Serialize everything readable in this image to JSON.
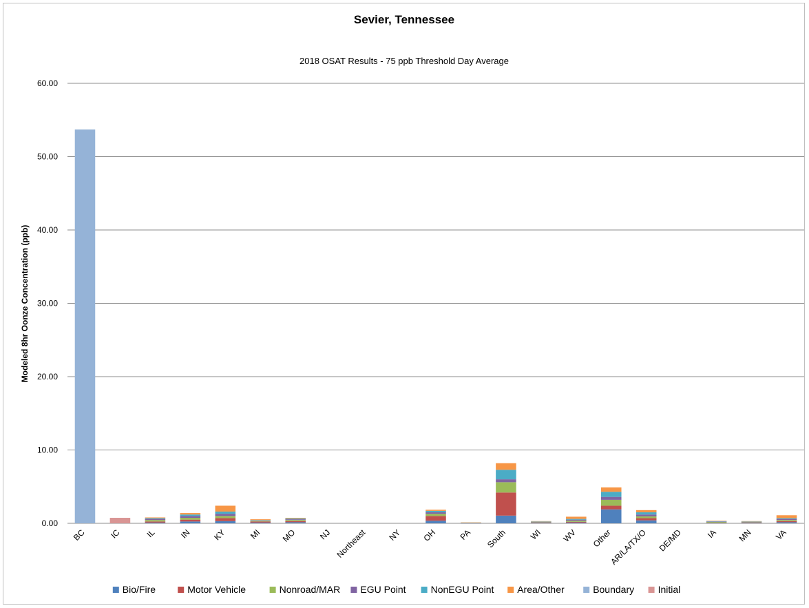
{
  "chart_data": {
    "type": "bar",
    "stacked": true,
    "title": "Sevier, Tennessee",
    "subtitle": "2018 OSAT Results - 75 ppb Threshold Day Average",
    "xlabel": "",
    "ylabel": "Modeled 8hr Oonze Concentration (ppb)",
    "ylim": [
      0,
      60
    ],
    "yticks": [
      "0.00",
      "10.00",
      "20.00",
      "30.00",
      "40.00",
      "50.00",
      "60.00"
    ],
    "grid": true,
    "legend_position": "bottom",
    "categories": [
      "BC",
      "IC",
      "IL",
      "IN",
      "KY",
      "MI",
      "MO",
      "NJ",
      "Northeast",
      "NY",
      "OH",
      "PA",
      "South",
      "WI",
      "WV",
      "Other",
      "AR/LA/TX/O",
      "DE/MD",
      "IA",
      "MN",
      "VA"
    ],
    "series": [
      {
        "name": "Bio/Fire",
        "color": "#4f81bd",
        "values": [
          0,
          0,
          0.1,
          0.25,
          0.3,
          0.1,
          0.15,
          0,
          0,
          0,
          0.35,
          0.02,
          1.05,
          0.05,
          0.1,
          1.9,
          0.4,
          0,
          0.05,
          0.05,
          0.15
        ]
      },
      {
        "name": "Motor Vehicle",
        "color": "#c0504d",
        "values": [
          0,
          0,
          0.15,
          0.25,
          0.4,
          0.15,
          0.15,
          0,
          0,
          0,
          0.65,
          0.02,
          3.15,
          0.05,
          0.1,
          0.5,
          0.3,
          0,
          0.05,
          0.05,
          0.15
        ]
      },
      {
        "name": "Nonroad/MAR",
        "color": "#9bbb59",
        "values": [
          0,
          0,
          0.2,
          0.25,
          0.3,
          0.1,
          0.15,
          0,
          0,
          0,
          0.3,
          0.02,
          1.4,
          0.05,
          0.15,
          0.8,
          0.25,
          0,
          0.1,
          0.05,
          0.15
        ]
      },
      {
        "name": "EGU Point",
        "color": "#8064a2",
        "values": [
          0,
          0,
          0.15,
          0.25,
          0.3,
          0.05,
          0.1,
          0,
          0,
          0,
          0.2,
          0.02,
          0.4,
          0.05,
          0.15,
          0.4,
          0.25,
          0,
          0.05,
          0.05,
          0.15
        ]
      },
      {
        "name": "NonEGU Point",
        "color": "#4bacc6",
        "values": [
          0,
          0,
          0.1,
          0.2,
          0.3,
          0.05,
          0.1,
          0,
          0,
          0,
          0.2,
          0.02,
          1.3,
          0.05,
          0.1,
          0.7,
          0.3,
          0,
          0.05,
          0.05,
          0.1
        ]
      },
      {
        "name": "Area/Other",
        "color": "#f79646",
        "values": [
          0,
          0,
          0.1,
          0.2,
          0.8,
          0.1,
          0.1,
          0,
          0,
          0,
          0.15,
          0.02,
          0.9,
          0.05,
          0.3,
          0.6,
          0.3,
          0,
          0.05,
          0.05,
          0.4
        ]
      },
      {
        "name": "Boundary",
        "color": "#95b3d7",
        "values": [
          53.7,
          0,
          0,
          0,
          0,
          0,
          0,
          0,
          0,
          0,
          0,
          0,
          0,
          0,
          0,
          0,
          0,
          0,
          0,
          0,
          0
        ]
      },
      {
        "name": "Initial",
        "color": "#d99594",
        "values": [
          0,
          0.75,
          0,
          0,
          0,
          0,
          0,
          0,
          0,
          0,
          0,
          0,
          0,
          0,
          0,
          0,
          0,
          0,
          0,
          0,
          0
        ]
      }
    ]
  }
}
